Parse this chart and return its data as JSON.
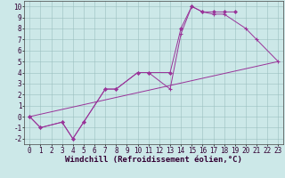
{
  "xlabel": "Windchill (Refroidissement éolien,°C)",
  "bg_color": "#cce8e8",
  "line_color": "#993399",
  "xlim": [
    -0.5,
    23.5
  ],
  "ylim": [
    -2.5,
    10.5
  ],
  "xticks": [
    0,
    1,
    2,
    3,
    4,
    5,
    6,
    7,
    8,
    9,
    10,
    11,
    12,
    13,
    14,
    15,
    16,
    17,
    18,
    19,
    20,
    21,
    22,
    23
  ],
  "yticks": [
    -2,
    -1,
    0,
    1,
    2,
    3,
    4,
    5,
    6,
    7,
    8,
    9,
    10
  ],
  "series1": {
    "x": [
      0,
      1,
      3,
      4,
      5,
      7,
      8,
      10,
      11,
      13,
      14,
      15,
      16,
      17,
      18,
      19
    ],
    "y": [
      0,
      -1,
      -0.5,
      -2,
      -0.5,
      2.5,
      2.5,
      4.0,
      4.0,
      4.0,
      8.0,
      10,
      9.5,
      9.5,
      9.5,
      9.5
    ]
  },
  "series2": {
    "x": [
      0,
      1,
      3,
      4,
      5,
      7,
      8,
      10,
      11,
      13,
      14,
      15,
      16,
      17,
      18,
      20,
      21,
      23
    ],
    "y": [
      0,
      -1,
      -0.5,
      -2,
      -0.5,
      2.5,
      2.5,
      4.0,
      4.0,
      2.5,
      7.5,
      10,
      9.5,
      9.3,
      9.3,
      8.0,
      7.0,
      5.0
    ]
  },
  "series3": {
    "x": [
      0,
      23
    ],
    "y": [
      0,
      5.0
    ]
  },
  "grid_color": "#9bbfbf",
  "tick_fontsize": 5.5,
  "xlabel_fontsize": 6.5
}
